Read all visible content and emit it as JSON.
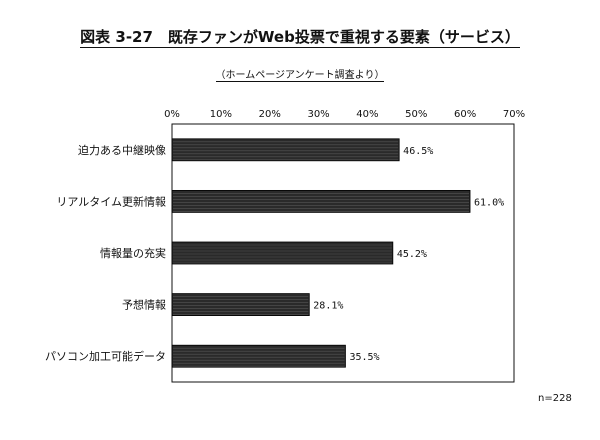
{
  "title": "図表 3-27　既存ファンがWeb投票で重視する要素（サービス）",
  "subtitle": "（ホームページアンケート調査より）",
  "note": "n=228",
  "chart_data": {
    "type": "bar",
    "orientation": "horizontal",
    "categories": [
      "迫力ある中継映像",
      "リアルタイム更新情報",
      "情報量の充実",
      "予想情報",
      "パソコン加工可能データ"
    ],
    "values": [
      46.5,
      61.0,
      45.2,
      28.1,
      35.5
    ],
    "value_labels": [
      "46.5%",
      "61.0%",
      "45.2%",
      "28.1%",
      "35.5%"
    ],
    "xticks": [
      "0%",
      "10%",
      "20%",
      "30%",
      "40%",
      "50%",
      "60%",
      "70%"
    ],
    "xlim": [
      0,
      70
    ],
    "grid": false,
    "bar_color": "#2a2a2a"
  }
}
